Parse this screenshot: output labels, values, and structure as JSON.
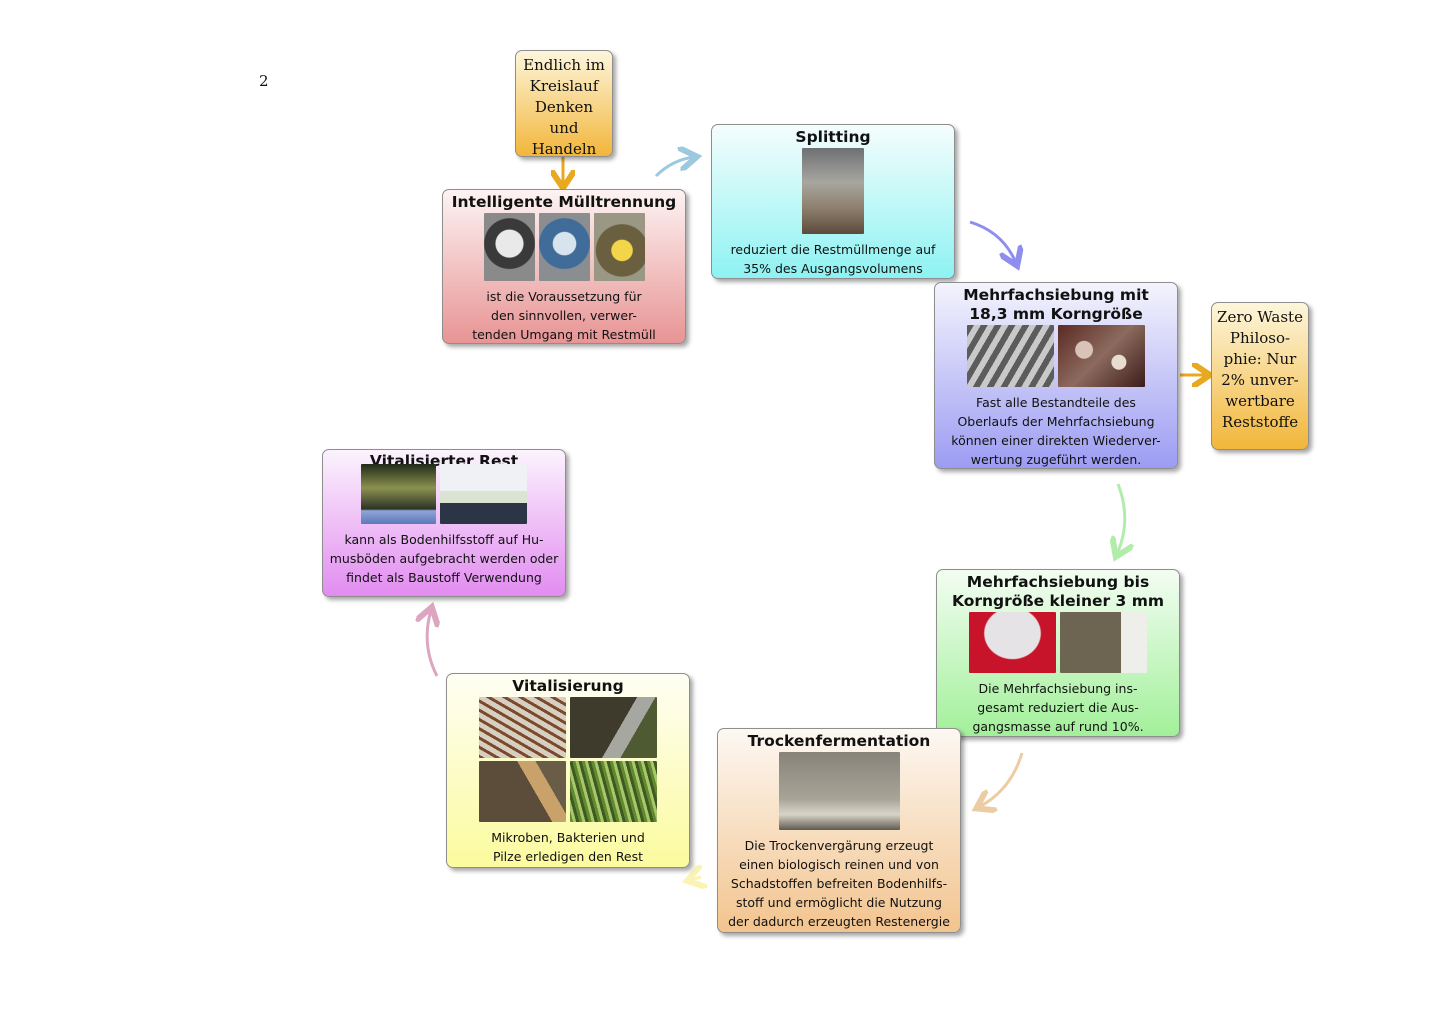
{
  "page_number": "2",
  "start": {
    "text": "Endlich im Kreislauf Denken und Handeln"
  },
  "zero_waste": {
    "text": "Zero Waste Philoso- phie: Nur 2% unver- wertbare Reststoffe"
  },
  "steps": [
    {
      "id": "muelltrennung",
      "title": "Intelligente Mülltrennung",
      "body": [
        "ist die Voraussetzung für",
        "den sinnvollen, verwer-",
        "tenden Umgang mit Restmüll"
      ]
    },
    {
      "id": "splitting",
      "title": "Splitting",
      "body": [
        "reduziert die Restmüllmenge auf",
        "35% des Ausgangsvolumens"
      ]
    },
    {
      "id": "mehrfachsiebung-183",
      "title": [
        "Mehrfachsiebung mit",
        "18,3 mm Korngröße"
      ],
      "body": [
        "Fast alle Bestandteile des",
        "Oberlaufs der Mehrfachsiebung",
        "können einer direkten Wiederver-",
        "wertung zugeführt werden."
      ]
    },
    {
      "id": "mehrfachsiebung-3",
      "title": [
        "Mehrfachsiebung bis",
        "Korngröße kleiner 3 mm"
      ],
      "body": [
        "Die Mehrfachsiebung ins-",
        "gesamt reduziert die Aus-",
        "gangsmasse auf rund 10%."
      ]
    },
    {
      "id": "trockenfermentation",
      "title": "Trockenfermentation",
      "body": [
        "Die Trockenvergärung erzeugt",
        "einen biologisch reinen und von",
        "Schadstoffen befreiten Bodenhilfs-",
        "stoff und ermöglicht die Nutzung",
        "der dadurch erzeugten Restenergie"
      ]
    },
    {
      "id": "vitalisierung",
      "title": "Vitalisierung",
      "body": [
        "Mikroben, Bakterien und",
        "Pilze erledigen den Rest"
      ]
    },
    {
      "id": "vitalisierter-rest",
      "title": "Vitalisierter Rest",
      "body": [
        "kann als Bodenhilfsstoff auf Hu-",
        "musböden aufgebracht werden oder",
        "findet als Baustoff Verwendung"
      ]
    }
  ],
  "colors": {
    "orange_arrow": "#e8a820",
    "arrow_lightblue": "#9cc8e0",
    "arrow_blue": "#8e8ef0",
    "arrow_green": "#b2ecaa",
    "arrow_tan": "#eccca2",
    "arrow_yellow": "#fbf3b3",
    "arrow_pink": "#dca6c0"
  }
}
